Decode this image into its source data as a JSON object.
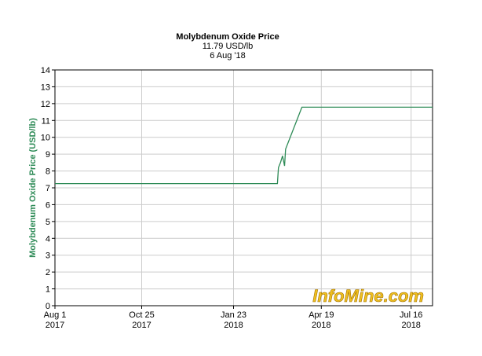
{
  "chart_data": {
    "type": "line",
    "title": "Molybdenum Oxide Price",
    "subtitle": [
      "11.79 USD/lb",
      "6 Aug '18"
    ],
    "y_label": "Molybdenum Oxide Price (USD/lb)",
    "watermark": "InfoMine.com",
    "x": [
      "2017-08-01",
      "2018-03-07",
      "2018-03-08",
      "2018-03-10",
      "2018-03-12",
      "2018-03-14",
      "2018-03-15",
      "2018-03-31",
      "2018-08-06"
    ],
    "series": [
      {
        "name": "Molybdenum Oxide Price",
        "color": "#2e8b57",
        "values": [
          7.25,
          7.25,
          8.2,
          8.5,
          8.9,
          8.3,
          9.3,
          11.79,
          11.79
        ]
      }
    ],
    "xlim": [
      "2017-08-01",
      "2018-08-06"
    ],
    "xticks": [
      {
        "value": "2017-08-01",
        "label": [
          "Aug 1",
          "2017"
        ]
      },
      {
        "value": "2017-10-25",
        "label": [
          "Oct 25",
          "2017"
        ]
      },
      {
        "value": "2018-01-23",
        "label": [
          "Jan 23",
          "2018"
        ]
      },
      {
        "value": "2018-04-19",
        "label": [
          "Apr 19",
          "2018"
        ]
      },
      {
        "value": "2018-07-16",
        "label": [
          "Jul 16",
          "2018"
        ]
      }
    ],
    "ylim": [
      0,
      14
    ],
    "yticks": [
      0,
      1,
      2,
      3,
      4,
      5,
      6,
      7,
      8,
      9,
      10,
      11,
      12,
      13,
      14
    ],
    "grid": true
  }
}
